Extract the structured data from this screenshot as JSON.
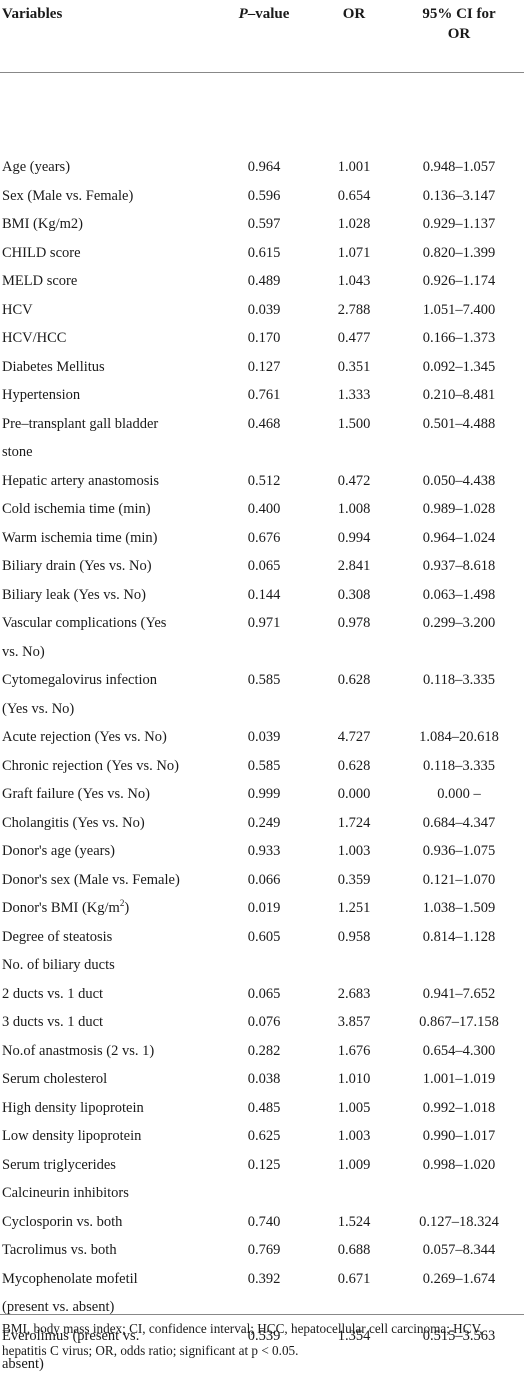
{
  "table": {
    "headers": {
      "variables": "Variables",
      "p_italic": "P",
      "p_rest": "–value",
      "or": "OR",
      "ci_line1": "95% CI for",
      "ci_line2": "OR"
    },
    "rows": [
      {
        "label": "Age (years)",
        "p": "0.964",
        "or": "1.001",
        "ci": "0.948–1.057"
      },
      {
        "label": "Sex (Male vs. Female)",
        "p": "0.596",
        "or": "0.654",
        "ci": "0.136–3.147"
      },
      {
        "label": "BMI (Kg/m2)",
        "p": "0.597",
        "or": "1.028",
        "ci": "0.929–1.137"
      },
      {
        "label": "CHILD score",
        "p": "0.615",
        "or": "1.071",
        "ci": "0.820–1.399"
      },
      {
        "label": "MELD score",
        "p": "0.489",
        "or": "1.043",
        "ci": "0.926–1.174"
      },
      {
        "label": "HCV",
        "p": "0.039",
        "or": "2.788",
        "ci": "1.051–7.400"
      },
      {
        "label": "HCV/HCC",
        "p": "0.170",
        "or": "0.477",
        "ci": "0.166–1.373"
      },
      {
        "label": "Diabetes Mellitus",
        "p": "0.127",
        "or": "0.351",
        "ci": "0.092–1.345"
      },
      {
        "label": "Hypertension",
        "p": "0.761",
        "or": "1.333",
        "ci": "0.210–8.481"
      },
      {
        "label": "Pre–transplant gall bladder",
        "label2": "stone",
        "p": "0.468",
        "or": "1.500",
        "ci": "0.501–4.488"
      },
      {
        "label": "Hepatic artery anastomosis",
        "p": "0.512",
        "or": "0.472",
        "ci": "0.050–4.438"
      },
      {
        "label": "Cold ischemia time (min)",
        "p": "0.400",
        "or": "1.008",
        "ci": "0.989–1.028"
      },
      {
        "label": "Warm ischemia time (min)",
        "p": "0.676",
        "or": "0.994",
        "ci": "0.964–1.024"
      },
      {
        "label": "Biliary drain (Yes vs. No)",
        "p": "0.065",
        "or": "2.841",
        "ci": "0.937–8.618"
      },
      {
        "label": "Biliary leak (Yes vs. No)",
        "p": "0.144",
        "or": "0.308",
        "ci": "0.063–1.498"
      },
      {
        "label": "Vascular complications (Yes",
        "label2": "vs. No)",
        "p": "0.971",
        "or": "0.978",
        "ci": "0.299–3.200"
      },
      {
        "label": "Cytomegalovirus infection",
        "label2": "(Yes vs. No)",
        "p": "0.585",
        "or": "0.628",
        "ci": "0.118–3.335"
      },
      {
        "label": "Acute rejection (Yes vs. No)",
        "p": "0.039",
        "or": "4.727",
        "ci": "1.084–20.618"
      },
      {
        "label": "Chronic rejection (Yes vs. No)",
        "p": "0.585",
        "or": "0.628",
        "ci": "0.118–3.335"
      },
      {
        "label": "Graft failure (Yes vs. No)",
        "p": "0.999",
        "or": "0.000",
        "ci": "0.000 –"
      },
      {
        "label": "Cholangitis (Yes vs. No)",
        "p": "0.249",
        "or": "1.724",
        "ci": "0.684–4.347"
      },
      {
        "label": "Donor's age (years)",
        "p": "0.933",
        "or": "1.003",
        "ci": "0.936–1.075"
      },
      {
        "label": "Donor's sex (Male vs. Female)",
        "p": "0.066",
        "or": "0.359",
        "ci": "0.121–1.070"
      },
      {
        "label": "Donor's BMI (Kg/m",
        "sup": "2",
        "label_after": ")",
        "p": "0.019",
        "or": "1.251",
        "ci": "1.038–1.509"
      },
      {
        "label": "Degree of steatosis",
        "p": "0.605",
        "or": "0.958",
        "ci": "0.814–1.128"
      },
      {
        "label": "No. of biliary ducts",
        "p": "",
        "or": "",
        "ci": ""
      },
      {
        "label": "2 ducts vs. 1 duct",
        "p": "0.065",
        "or": "2.683",
        "ci": "0.941–7.652"
      },
      {
        "label": "3 ducts vs. 1 duct",
        "p": "0.076",
        "or": "3.857",
        "ci": "0.867–17.158"
      },
      {
        "label": "No.of anastmosis (2 vs. 1)",
        "p": "0.282",
        "or": "1.676",
        "ci": "0.654–4.300"
      },
      {
        "label": "Serum cholesterol",
        "p": "0.038",
        "or": "1.010",
        "ci": "1.001–1.019"
      },
      {
        "label": "High density lipoprotein",
        "p": "0.485",
        "or": "1.005",
        "ci": "0.992–1.018"
      },
      {
        "label": "Low density lipoprotein",
        "p": "0.625",
        "or": "1.003",
        "ci": "0.990–1.017"
      },
      {
        "label": "Serum triglycerides",
        "p": "0.125",
        "or": "1.009",
        "ci": "0.998–1.020"
      },
      {
        "label": "Calcineurin inhibitors",
        "p": "",
        "or": "",
        "ci": ""
      },
      {
        "label": "Cyclosporin vs. both",
        "p": "0.740",
        "or": "1.524",
        "ci": "0.127–18.324"
      },
      {
        "label": "Tacrolimus vs. both",
        "p": "0.769",
        "or": "0.688",
        "ci": "0.057–8.344"
      },
      {
        "label": "Mycophenolate mofetil",
        "label2": "(present vs. absent)",
        "p": "0.392",
        "or": "0.671",
        "ci": "0.269–1.674"
      },
      {
        "label": "Everolimus (present vs.",
        "label2": "absent)",
        "p": "0.539",
        "or": "1.354",
        "ci": "0.515–3.563"
      }
    ]
  },
  "footnote": {
    "line1": "BMI, body mass index; CI, confidence interval; HCC, hepatocellular cell carcinoma; HCV,",
    "line2": "hepatitis C virus; OR, odds ratio; significant at p < 0.05."
  }
}
